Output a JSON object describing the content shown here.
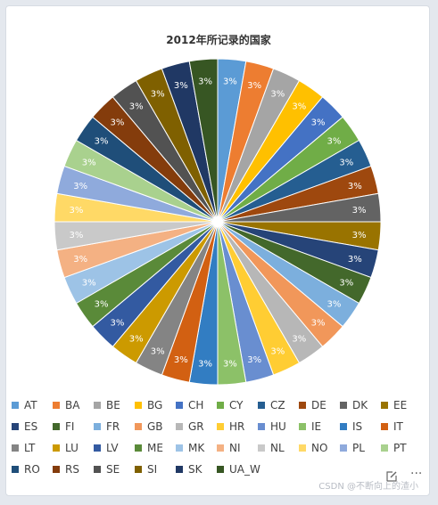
{
  "chart_data": {
    "type": "pie",
    "title": "2012年所记录的国家",
    "categories": [
      "AT",
      "BA",
      "BE",
      "BG",
      "CH",
      "CY",
      "CZ",
      "DE",
      "DK",
      "EE",
      "ES",
      "FI",
      "FR",
      "GB",
      "GR",
      "HR",
      "HU",
      "IE",
      "IS",
      "IT",
      "LT",
      "LU",
      "LV",
      "ME",
      "MK",
      "NI",
      "NL",
      "NO",
      "PL",
      "PT",
      "RO",
      "RS",
      "SE",
      "SI",
      "SK",
      "UA_W"
    ],
    "values": [
      3,
      3,
      3,
      3,
      3,
      3,
      3,
      3,
      3,
      3,
      3,
      3,
      3,
      3,
      3,
      3,
      3,
      3,
      3,
      3,
      3,
      3,
      3,
      3,
      3,
      3,
      3,
      3,
      3,
      3,
      3,
      3,
      3,
      3,
      3,
      3
    ],
    "data_labels": [
      "3%",
      "3%",
      "3%",
      "3%",
      "3%",
      "3%",
      "3%",
      "3%",
      "3%",
      "3%",
      "3%",
      "3%",
      "3%",
      "3%",
      "3%",
      "3%",
      "3%",
      "3%",
      "3%",
      "3%",
      "3%",
      "3%",
      "3%",
      "3%",
      "3%",
      "3%",
      "3%",
      "3%",
      "3%",
      "3%",
      "3%",
      "3%",
      "3%",
      "3%",
      "3%",
      "3%"
    ],
    "legend_position": "bottom",
    "colors": [
      "#5b9bd5",
      "#ed7d31",
      "#a5a5a5",
      "#ffc000",
      "#4472c4",
      "#70ad47",
      "#255e91",
      "#9e480e",
      "#636363",
      "#997300",
      "#264478",
      "#43682b",
      "#7cafdd",
      "#f1975a",
      "#b7b7b7",
      "#ffcd33",
      "#698ed0",
      "#8cc168",
      "#327dc2",
      "#d26012",
      "#848484",
      "#cc9a00",
      "#335aa1",
      "#5a8a39",
      "#9dc3e6",
      "#f4b183",
      "#c9c9c9",
      "#ffd966",
      "#8faadc",
      "#a9d18e",
      "#1f4e79",
      "#843c0c",
      "#525252",
      "#7f6000",
      "#203864",
      "#375623"
    ]
  },
  "toolbar": {
    "edit_icon": "edit-icon",
    "more_icon": "more-icon",
    "more_label": "···"
  },
  "watermark": "CSDN @不断向上的渣小"
}
